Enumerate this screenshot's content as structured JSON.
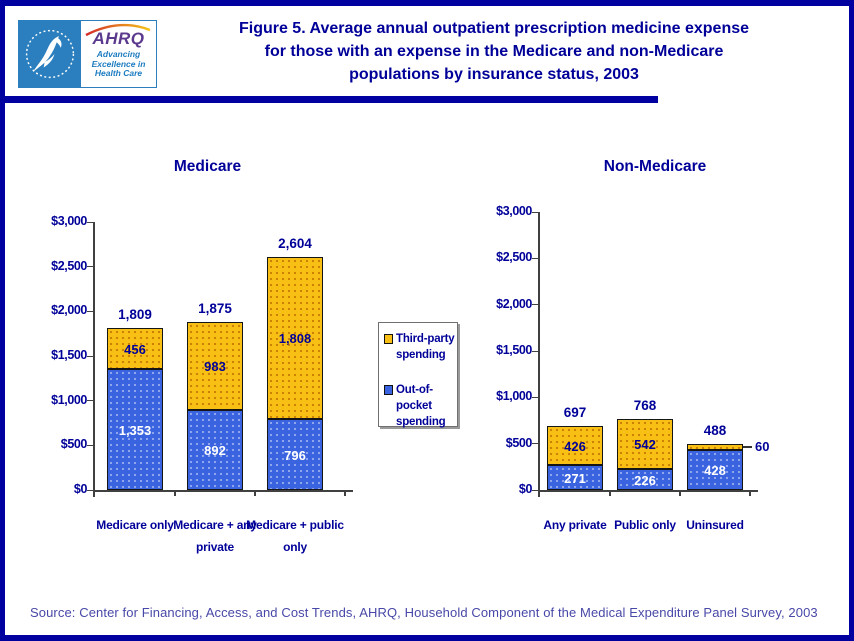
{
  "page": {
    "title": "Figure 5. Average annual outpatient prescription medicine expense\nfor those with an expense in the Medicare and non-Medicare\npopulations by insurance status, 2003",
    "source_note": "Source: Center for Financing, Access, and Cost Trends, AHRQ, Household Component of the Medical Expenditure Panel Survey, 2003"
  },
  "logo": {
    "org": "AHRQ",
    "tagline": "Advancing\nExcellence in\nHealth Care"
  },
  "colors": {
    "frame_navy": "#0000A0",
    "title_text": "#000099",
    "bar_blue": "#3A63E0",
    "bar_yellow": "#F8C014",
    "hhs_blue": "#2B7FBE",
    "ahrq_purple": "#5B3A8E",
    "source_text": "#4848A8"
  },
  "legend": {
    "items": [
      {
        "label": "Third-party\nspending",
        "color": "#F8C014"
      },
      {
        "label": "Out-of-pocket\nspending",
        "color": "#3A63E0"
      }
    ]
  },
  "chart_data": [
    {
      "type": "bar",
      "stacked": true,
      "title": "Medicare",
      "categories": [
        "Medicare only",
        "Medicare + any\nprivate",
        "Medicare + public\nonly"
      ],
      "series": [
        {
          "name": "Out-of-pocket spending",
          "color": "#3A63E0",
          "label_color": "#FFFFFF",
          "values": [
            1353,
            892,
            796
          ],
          "labels": [
            "1,353",
            "892",
            "796"
          ]
        },
        {
          "name": "Third-party spending",
          "color": "#F8C014",
          "label_color": "#000099",
          "values": [
            456,
            983,
            1808
          ],
          "labels": [
            "456",
            "983",
            "1,808"
          ]
        }
      ],
      "totals": {
        "values": [
          1809,
          1875,
          2604
        ],
        "labels": [
          "1,809",
          "1,875",
          "2,604"
        ]
      },
      "ylim": [
        0,
        3000
      ],
      "ytick_step": 500,
      "yticks": [
        "$0",
        "$500",
        "$1,000",
        "$1,500",
        "$2,000",
        "$2,500",
        "$3,000"
      ],
      "grid": false,
      "legend_position": "right-of-chart"
    },
    {
      "type": "bar",
      "stacked": true,
      "title": "Non-Medicare",
      "categories": [
        "Any private",
        "Public only",
        "Uninsured"
      ],
      "series": [
        {
          "name": "Out-of-pocket spending",
          "color": "#3A63E0",
          "label_color": "#FFFFFF",
          "values": [
            271,
            226,
            428
          ],
          "labels": [
            "271",
            "226",
            "428"
          ]
        },
        {
          "name": "Third-party spending",
          "color": "#F8C014",
          "label_color": "#000099",
          "values": [
            426,
            542,
            60
          ],
          "labels": [
            "426",
            "542",
            "60"
          ]
        }
      ],
      "totals": {
        "values": [
          697,
          768,
          488
        ],
        "labels": [
          "697",
          "768",
          "488"
        ]
      },
      "ylim": [
        0,
        3000
      ],
      "ytick_step": 500,
      "yticks": [
        "$0",
        "$500",
        "$1,000",
        "$1,500",
        "$2,000",
        "$2,500",
        "$3,000"
      ],
      "grid": false,
      "legend_position": "none"
    }
  ]
}
